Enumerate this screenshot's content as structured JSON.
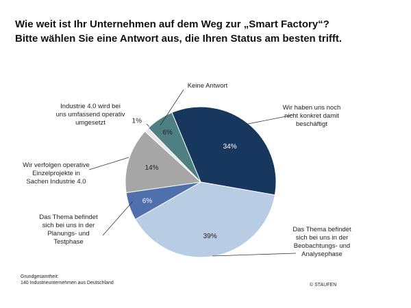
{
  "chart_data": {
    "type": "pie",
    "title": "Wie weit ist Ihr Unternehmen auf dem Weg zur „Smart Factory“?",
    "subtitle": "Bitte wählen Sie eine Antwort aus, die Ihren Status am besten trifft.",
    "categories": [
      "Wir haben uns noch\nnicht konkret damit\nbeschäftigt",
      "Das Thema befindet\nsich bei uns in der\nBeobachtungs- und\nAnalysephase",
      "Das Thema befindet\nsich bei uns in der\nPlanungs- und\nTestphase",
      "Wir verfolgen operative\nEinzelprojekte in\nSachen Industrie 4.0",
      "Industrie 4.0 wird bei\nuns umfassend operativ\numgesetzt",
      "Keine Antwort"
    ],
    "values": [
      34,
      39,
      6,
      14,
      1,
      6
    ],
    "value_labels": [
      "34%",
      "39%",
      "6%",
      "14%",
      "1%",
      "6%"
    ],
    "colors": [
      "#17375e",
      "#b8cce4",
      "#4f6fad",
      "#a6a6a6",
      "#e6e6e6",
      "#4e7f83"
    ],
    "footnote": "Grundgesamtheit:\n140 Industrieunternehmen aus Deutschland",
    "source": "© STAUFEN"
  }
}
